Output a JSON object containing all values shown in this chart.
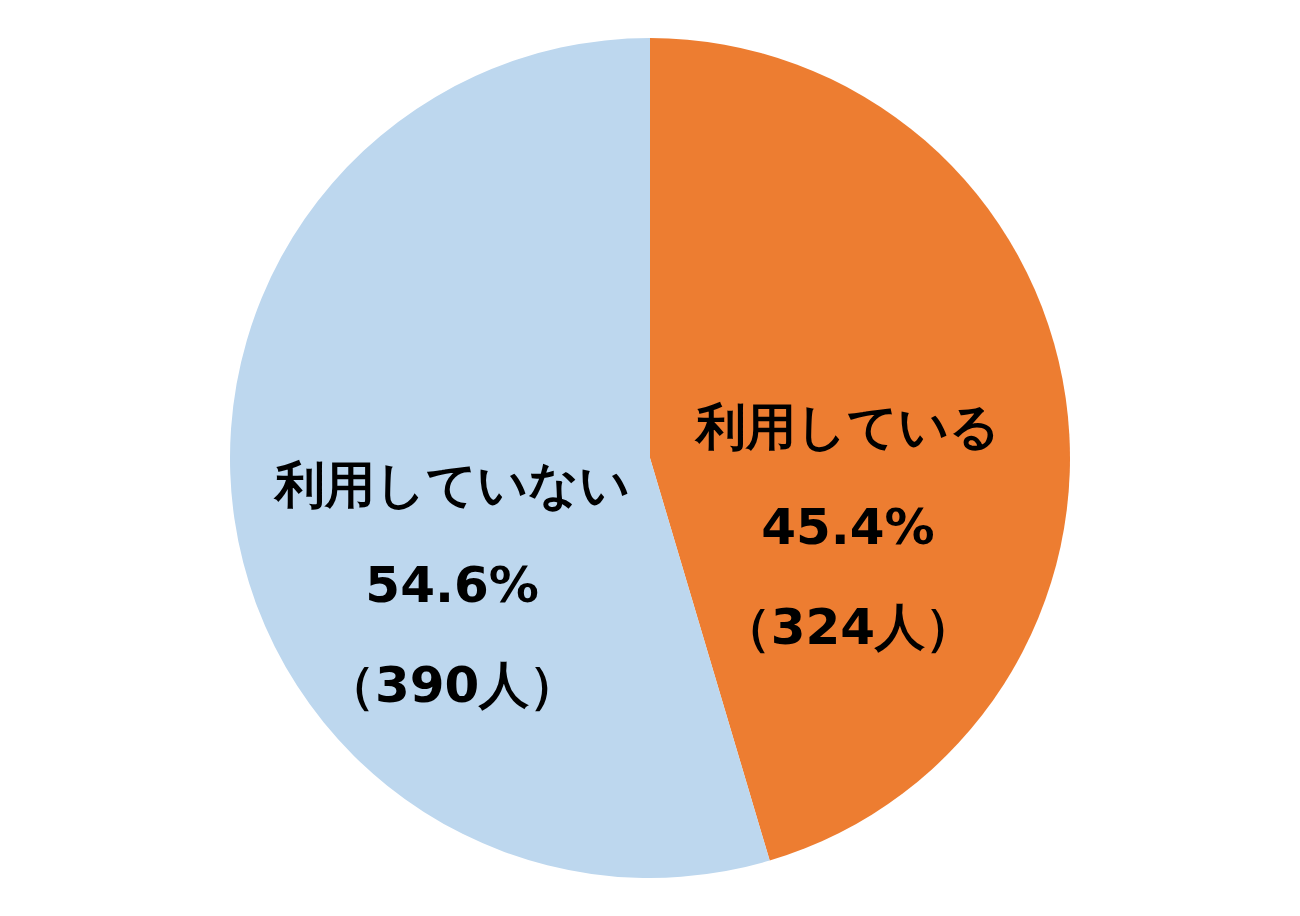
{
  "chart_data": {
    "type": "pie",
    "categories": [
      "利用している",
      "利用していない"
    ],
    "values": [
      45.4,
      54.6
    ],
    "colors": [
      "#ed7d31",
      "#bdd7ee"
    ],
    "value_labels": [
      "45.4%\n（324人）",
      "54.6%\n（390人）"
    ]
  }
}
